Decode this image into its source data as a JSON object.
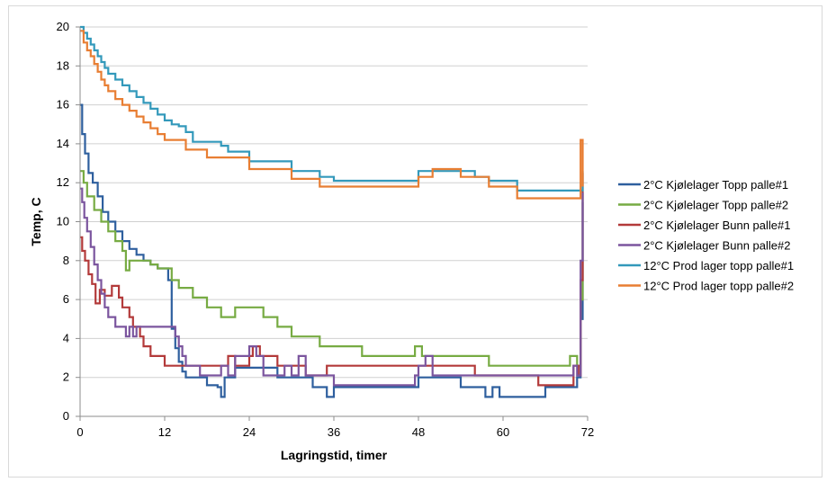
{
  "chart_data": {
    "type": "line",
    "title": "",
    "xlabel": "Lagringstid, timer",
    "ylabel": "Temp, C",
    "xlim": [
      0,
      72
    ],
    "ylim": [
      0,
      20
    ],
    "xticks": [
      0,
      12,
      24,
      36,
      48,
      60,
      72
    ],
    "yticks": [
      0,
      2,
      4,
      6,
      8,
      10,
      12,
      14,
      16,
      18,
      20
    ],
    "grid": "horizontal",
    "legend_position": "right",
    "series": [
      {
        "name": "2°C Kjølelager Topp palle#1",
        "color": "#2e5f9e",
        "x": [
          0,
          0.3,
          0.7,
          1.2,
          1.8,
          2.5,
          3.2,
          4,
          5,
          6,
          7,
          8,
          9,
          10,
          11,
          12.5,
          13,
          13.5,
          14,
          14.5,
          15,
          16,
          17,
          18,
          19.5,
          20,
          20.5,
          22,
          24,
          26,
          28,
          30,
          33,
          35,
          36,
          40,
          44,
          48,
          50,
          54,
          56,
          57.5,
          58.5,
          59.5,
          60.5,
          64,
          66,
          69,
          70.5,
          71,
          71.3
        ],
        "y": [
          16,
          14.5,
          13.5,
          12.5,
          12,
          11.3,
          10.5,
          10,
          9.5,
          9,
          8.6,
          8.3,
          8,
          7.8,
          7.6,
          7,
          4.5,
          3.5,
          2.8,
          2.3,
          2,
          2,
          2,
          1.6,
          1.5,
          1,
          2,
          2.5,
          2.5,
          2.5,
          2,
          2,
          1.5,
          1,
          1.5,
          1.5,
          1.5,
          2,
          2,
          1.5,
          1.5,
          1,
          1.5,
          1,
          1,
          1,
          1.5,
          1.5,
          2,
          5,
          11
        ]
      },
      {
        "name": "2°C Kjølelager Topp palle#2",
        "color": "#77ab43",
        "x": [
          0,
          0.5,
          1,
          2,
          3,
          4,
          5,
          6,
          6.5,
          7,
          8,
          9,
          10,
          11,
          12,
          13,
          14,
          16,
          18,
          20,
          22,
          24,
          26,
          28,
          30,
          32,
          34,
          36,
          38,
          40,
          44,
          47,
          47.5,
          48.5,
          50,
          54,
          58,
          62,
          66,
          69,
          69.5,
          70.5,
          71,
          71.3
        ],
        "y": [
          12.6,
          12,
          11.3,
          10.6,
          10,
          9.5,
          9,
          8.5,
          7.5,
          8,
          8,
          8,
          7.8,
          7.6,
          7.6,
          7,
          6.6,
          6.1,
          5.6,
          5.1,
          5.6,
          5.6,
          5.1,
          4.6,
          4.1,
          4.1,
          3.6,
          3.6,
          3.6,
          3.1,
          3.1,
          3.1,
          3.6,
          3.1,
          3.1,
          3.1,
          2.6,
          2.6,
          2.6,
          2.6,
          3.1,
          2.6,
          6,
          11.5
        ]
      },
      {
        "name": "2°C Kjølelager Bunn palle#1",
        "color": "#b33a3a",
        "x": [
          0,
          0.3,
          0.7,
          1.2,
          1.7,
          2.2,
          2.8,
          3.5,
          4.5,
          5.5,
          6,
          7,
          7.5,
          8.5,
          9,
          10,
          12,
          14,
          16,
          18,
          20,
          21,
          22,
          24,
          24.5,
          25.5,
          26,
          28,
          30,
          32,
          35,
          40,
          44,
          48,
          50,
          52,
          54,
          56,
          60,
          64,
          65,
          70,
          70.7,
          71,
          71.3
        ],
        "y": [
          9.2,
          8.5,
          8,
          7.3,
          6.8,
          5.8,
          6.5,
          6.2,
          6.7,
          6.1,
          5.6,
          5.1,
          4.6,
          4.1,
          3.6,
          3.1,
          2.6,
          2.6,
          2.6,
          2.6,
          2.6,
          3.1,
          2.6,
          3.1,
          3.6,
          3.1,
          3.1,
          2.6,
          2.6,
          2.1,
          2.6,
          2.6,
          2.6,
          2.6,
          2.6,
          2.6,
          2.6,
          2.1,
          2.1,
          2.1,
          1.6,
          2.6,
          2.1,
          7,
          12.5
        ]
      },
      {
        "name": "2°C Kjølelager Bunn palle#2",
        "color": "#7b559e",
        "x": [
          0,
          0.3,
          0.6,
          1,
          1.5,
          2,
          2.5,
          3,
          3.5,
          4,
          5,
          6,
          6.5,
          7,
          7.5,
          8,
          10,
          12,
          13.5,
          14,
          14.5,
          15,
          16,
          17,
          18,
          19,
          20,
          21,
          22,
          23,
          24,
          25,
          26,
          28,
          29,
          30,
          31,
          32,
          34,
          36,
          40,
          44,
          46,
          47.5,
          48,
          49,
          50,
          52,
          55,
          58,
          62,
          65,
          68,
          70,
          70.5,
          71,
          71.3
        ],
        "y": [
          11.7,
          11,
          10.2,
          9.5,
          8.7,
          7.8,
          7,
          6.3,
          5.6,
          5.1,
          4.6,
          4.6,
          4.1,
          4.6,
          4.1,
          4.6,
          4.6,
          4.6,
          4.1,
          3.6,
          3.1,
          2.6,
          2.6,
          2.1,
          2.1,
          2.1,
          2.6,
          2.1,
          3.1,
          3.1,
          3.6,
          3.1,
          2.1,
          2.1,
          2.6,
          2.1,
          3.1,
          2.1,
          2.1,
          1.6,
          1.6,
          1.6,
          1.6,
          2.1,
          2.6,
          3.1,
          2.1,
          2.1,
          2.1,
          2.1,
          2.1,
          2.1,
          2.1,
          2.6,
          2.1,
          8,
          11.5
        ]
      },
      {
        "name": "12°C Prod lager topp palle#1",
        "color": "#3399bb",
        "x": [
          0,
          0.5,
          1,
          1.5,
          2,
          2.5,
          3,
          3.5,
          4,
          5,
          6,
          7,
          8,
          9,
          10,
          11,
          12,
          13,
          14,
          15,
          16,
          18,
          20,
          21,
          22,
          24,
          26,
          28,
          30,
          32,
          34,
          36,
          38,
          40,
          44,
          46,
          47,
          48,
          50,
          52,
          54,
          56,
          58,
          60,
          62,
          66,
          70,
          71,
          71.3
        ],
        "y": [
          20,
          19.7,
          19.4,
          19.1,
          18.8,
          18.5,
          18.2,
          17.9,
          17.6,
          17.3,
          17,
          16.7,
          16.4,
          16.1,
          15.8,
          15.5,
          15.2,
          15,
          14.9,
          14.6,
          14.1,
          14.1,
          13.9,
          13.6,
          13.6,
          13.1,
          13.1,
          13.1,
          12.6,
          12.6,
          12.3,
          12.1,
          12.1,
          12.1,
          12.1,
          12.1,
          12.1,
          12.6,
          12.6,
          12.6,
          12.6,
          12.3,
          12.1,
          12.1,
          11.6,
          11.6,
          11.6,
          11.6,
          12.6
        ]
      },
      {
        "name": "12°C Prod lager topp palle#2",
        "color": "#e87e33",
        "x": [
          0,
          0.5,
          1,
          1.5,
          2,
          2.5,
          3,
          3.5,
          4,
          5,
          6,
          7,
          8,
          9,
          10,
          11,
          12,
          13,
          14,
          15,
          16,
          18,
          20,
          22,
          24,
          26,
          28,
          30,
          32,
          34,
          36,
          38,
          40,
          44,
          46,
          47,
          48,
          50,
          52,
          54,
          56,
          58,
          60,
          62,
          66,
          70,
          70.7,
          71,
          71.3
        ],
        "y": [
          19.8,
          19.2,
          18.8,
          18.5,
          18.1,
          17.7,
          17.3,
          17,
          16.7,
          16.3,
          16,
          15.7,
          15.4,
          15.1,
          14.8,
          14.5,
          14.2,
          14.2,
          14.2,
          13.7,
          13.7,
          13.3,
          13.3,
          13.3,
          12.7,
          12.7,
          12.7,
          12.2,
          12.2,
          11.8,
          11.8,
          11.8,
          11.8,
          11.8,
          11.8,
          11.8,
          12.3,
          12.7,
          12.7,
          12.3,
          12.3,
          11.8,
          11.8,
          11.2,
          11.2,
          11.2,
          11.2,
          14.2,
          11.8
        ]
      }
    ]
  }
}
